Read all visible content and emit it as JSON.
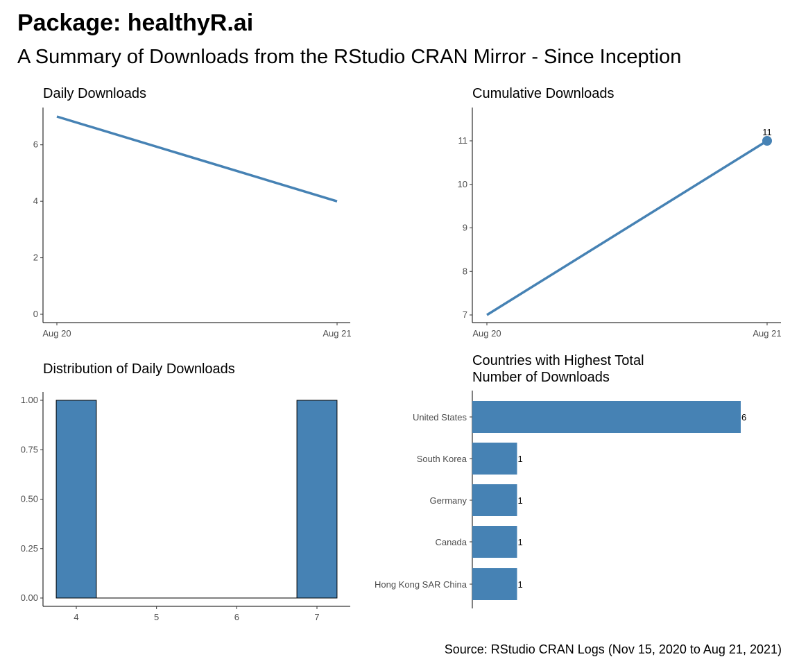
{
  "title": "Package: healthyR.ai",
  "subtitle": "A Summary of Downloads from the RStudio CRAN Mirror - Since Inception",
  "caption": "Source: RStudio CRAN Logs (Nov 15, 2020 to Aug 21, 2021)",
  "colors": {
    "bar": "#4682b4",
    "line": "#4682b4"
  },
  "chart_data": [
    {
      "id": "daily",
      "type": "line",
      "title": "Daily Downloads",
      "x": [
        "Aug 20",
        "Aug 21"
      ],
      "y": [
        7,
        4
      ],
      "xticks": [
        "Aug 20",
        "Aug 21"
      ],
      "yticks": [
        "0",
        "2",
        "4",
        "6"
      ],
      "ylim": [
        0,
        7
      ]
    },
    {
      "id": "cumulative",
      "type": "line",
      "title": "Cumulative Downloads",
      "x": [
        "Aug 20",
        "Aug 21"
      ],
      "y": [
        7,
        11
      ],
      "xticks": [
        "Aug 20",
        "Aug 21"
      ],
      "yticks": [
        "7",
        "8",
        "9",
        "10",
        "11"
      ],
      "ylim": [
        7,
        11
      ],
      "point_label": "11"
    },
    {
      "id": "distribution",
      "type": "bar",
      "title": "Distribution of Daily Downloads",
      "bins": [
        {
          "from": 3.75,
          "to": 4.25,
          "value": 1
        },
        {
          "from": 6.75,
          "to": 7.25,
          "value": 1
        }
      ],
      "xticks": [
        "4",
        "5",
        "6",
        "7"
      ],
      "yticks": [
        "0.00",
        "0.25",
        "0.50",
        "0.75",
        "1.00"
      ],
      "ylim": [
        0,
        1
      ]
    },
    {
      "id": "countries",
      "type": "bar",
      "orientation": "horizontal",
      "title_lines": [
        "Countries with Highest Total",
        "Number of Downloads"
      ],
      "categories": [
        "United States",
        "South Korea",
        "Germany",
        "Canada",
        "Hong Kong SAR China"
      ],
      "values": [
        6,
        1,
        1,
        1,
        1
      ],
      "labels": [
        "6",
        "1",
        "1",
        "1",
        "1"
      ]
    }
  ]
}
